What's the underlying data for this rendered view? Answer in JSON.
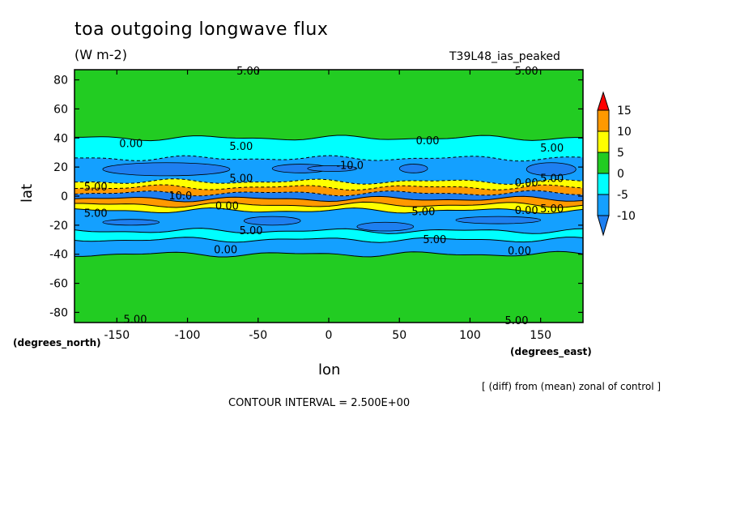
{
  "header": {
    "title": "toa outgoing longwave flux",
    "units": "(W m-2)",
    "run_label": "T39L48_ias_peaked"
  },
  "footer": {
    "diff_note": "[ (diff) from (mean) zonal of control ]",
    "contour_interval": "CONTOUR INTERVAL = 2.500E+00"
  },
  "axes": {
    "y_unit": "(degrees_north)",
    "x_unit": "(degrees_east)"
  },
  "colors": {
    "c_lt_m10": "#1e7ff0",
    "c_m10_m5": "#14a0ff",
    "c_m5_0": "#00ffff",
    "c_0_5": "#22cc22",
    "c_5_10": "#ffff00",
    "c_10_15": "#ff9900",
    "c_gt_15": "#ff0000",
    "line": "#000000"
  },
  "chart_data": {
    "type": "contour",
    "title": "toa outgoing longwave flux",
    "subtitle": "(W m-2)",
    "xlabel": "lon",
    "ylabel": "lat",
    "xlim": [
      -180,
      180
    ],
    "ylim": [
      -87,
      87
    ],
    "xticks": [
      -150,
      -100,
      -50,
      0,
      50,
      100,
      150
    ],
    "xtick_labels": [
      "-150",
      "-100",
      "-50",
      "0",
      "50",
      "100",
      "150"
    ],
    "yticks": [
      80,
      60,
      40,
      20,
      0,
      -20,
      -40,
      -60,
      -80
    ],
    "ytick_labels": [
      "80",
      "60",
      "40",
      "20",
      "0",
      "-20",
      "-40",
      "-60",
      "-80"
    ],
    "colorbar": {
      "levels": [
        -10,
        -5,
        0,
        5,
        10,
        15
      ],
      "labels": [
        "-10",
        "-5",
        "0",
        "5",
        "10",
        "15"
      ]
    },
    "bands": [
      {
        "lat_from": 87,
        "lat_to": 40,
        "value_class": "0_5"
      },
      {
        "lat_from": 40,
        "lat_to": 26,
        "value_class": "m5_0"
      },
      {
        "lat_from": 26,
        "lat_to": 10,
        "value_class": "m10_m5"
      },
      {
        "lat_from": 10,
        "lat_to": 6,
        "value_class": "5_10"
      },
      {
        "lat_from": 6,
        "lat_to": 2,
        "value_class": "10_15"
      },
      {
        "lat_from": 2,
        "lat_to": -2,
        "value_class": "lt_m10"
      },
      {
        "lat_from": -2,
        "lat_to": -6,
        "value_class": "10_15"
      },
      {
        "lat_from": -6,
        "lat_to": -10,
        "value_class": "5_10"
      },
      {
        "lat_from": -10,
        "lat_to": -24,
        "value_class": "m10_m5"
      },
      {
        "lat_from": -24,
        "lat_to": -30,
        "value_class": "m5_0"
      },
      {
        "lat_from": -30,
        "lat_to": -40,
        "value_class": "m10_m5"
      },
      {
        "lat_from": -40,
        "lat_to": -87,
        "value_class": "0_5"
      }
    ],
    "contour_labels": [
      {
        "text": "5.00",
        "lon": -57,
        "lat": 86
      },
      {
        "text": "5.00",
        "lon": 140,
        "lat": 86
      },
      {
        "text": "0.00",
        "lon": -140,
        "lat": 36
      },
      {
        "text": "0.00",
        "lon": 70,
        "lat": 38
      },
      {
        "text": "5.00",
        "lon": -62,
        "lat": 34
      },
      {
        "text": "5.00",
        "lon": 158,
        "lat": 33
      },
      {
        "text": "-10.0",
        "lon": 15,
        "lat": 21
      },
      {
        "text": "5.00",
        "lon": -62,
        "lat": 12
      },
      {
        "text": "0.00",
        "lon": 140,
        "lat": 9
      },
      {
        "text": "5.00",
        "lon": 158,
        "lat": 12
      },
      {
        "text": "5.00",
        "lon": -165,
        "lat": 6
      },
      {
        "text": "10.0",
        "lon": -105,
        "lat": 0
      },
      {
        "text": "0.00",
        "lon": -72,
        "lat": -7
      },
      {
        "text": "0.00",
        "lon": 140,
        "lat": -10
      },
      {
        "text": "5.00",
        "lon": -165,
        "lat": -12
      },
      {
        "text": "5.00",
        "lon": 67,
        "lat": -11
      },
      {
        "text": "5.00",
        "lon": 158,
        "lat": -9
      },
      {
        "text": "5.00",
        "lon": -55,
        "lat": -24
      },
      {
        "text": "5.00",
        "lon": 75,
        "lat": -30
      },
      {
        "text": "0.00",
        "lon": -73,
        "lat": -37
      },
      {
        "text": "0.00",
        "lon": 135,
        "lat": -38
      },
      {
        "text": "5.00",
        "lon": -137,
        "lat": -85
      },
      {
        "text": "5.00",
        "lon": 133,
        "lat": -86
      }
    ]
  }
}
